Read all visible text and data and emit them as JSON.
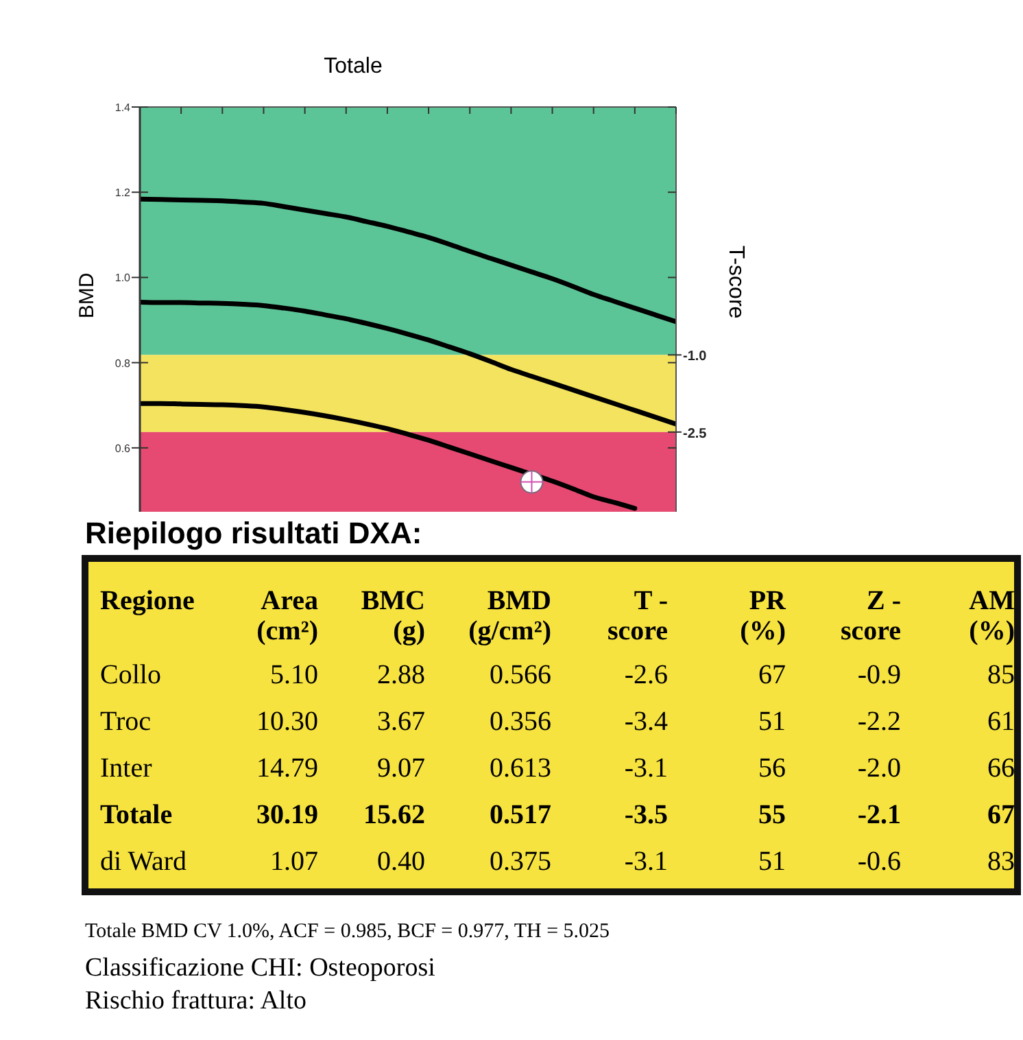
{
  "chart_data": [
    {
      "type": "line",
      "title": "Totale",
      "ylabel": "BMD",
      "y2label": "T-score",
      "categories": [
        null,
        null,
        null,
        null,
        null,
        null,
        null,
        null,
        null,
        null,
        null,
        null,
        null,
        null,
        null,
        null,
        null,
        null,
        null,
        null,
        null,
        null,
        null,
        null,
        null,
        null,
        null
      ],
      "series": [
        {
          "type": "line",
          "color": "#000000",
          "values": [
            1.184,
            1.183,
            1.182,
            1.181,
            1.18,
            1.177,
            1.174,
            1.166,
            1.158,
            1.15,
            1.142,
            1.131,
            1.12,
            1.107,
            1.094,
            1.078,
            1.061,
            1.045,
            1.029,
            1.013,
            0.997,
            0.979,
            0.96,
            0.944,
            0.928,
            0.912,
            0.896
          ]
        },
        {
          "type": "line",
          "color": "#000000",
          "values": [
            0.942,
            0.941,
            0.941,
            0.94,
            0.939,
            0.937,
            0.934,
            0.928,
            0.921,
            0.912,
            0.903,
            0.892,
            0.88,
            0.867,
            0.853,
            0.837,
            0.821,
            0.803,
            0.784,
            0.768,
            0.752,
            0.736,
            0.72,
            0.704,
            0.688,
            0.672,
            0.656
          ]
        },
        {
          "type": "line",
          "color": "#000000",
          "values": [
            0.704,
            0.704,
            0.703,
            0.702,
            0.701,
            0.699,
            0.696,
            0.69,
            0.683,
            0.675,
            0.666,
            0.656,
            0.645,
            0.632,
            0.618,
            0.602,
            0.586,
            0.57,
            0.554,
            0.538,
            0.522,
            0.504,
            0.485,
            0.472,
            0.458,
            null,
            null
          ]
        },
        {
          "type": "scatter",
          "color": "#ffffff",
          "marker": "circle",
          "values": [
            null,
            null,
            null,
            null,
            null,
            null,
            null,
            null,
            null,
            null,
            null,
            null,
            null,
            null,
            null,
            null,
            null,
            null,
            null,
            0.52,
            null,
            null,
            null,
            null,
            null,
            null,
            null
          ]
        }
      ],
      "ylim": [
        0.45,
        1.4
      ],
      "yticks": [
        {
          "value": 0.6,
          "label": "0.6"
        },
        {
          "value": 0.8,
          "label": "0.8"
        },
        {
          "value": 1,
          "label": "1.0"
        },
        {
          "value": 1.2,
          "label": "1.2"
        },
        {
          "value": 1.4,
          "label": "1.4"
        }
      ],
      "y2lim": [
        -4.05,
        3.82
      ],
      "y2ticks": [
        {
          "value": -1,
          "label": "-1.0"
        },
        {
          "value": -2.5,
          "label": "-2.5"
        }
      ],
      "bands": [
        {
          "axis": "y2",
          "from": -1,
          "to": 3.82,
          "color": "#5cc597"
        },
        {
          "axis": "y2",
          "from": -2.5,
          "to": -1,
          "color": "#f4e35e"
        },
        {
          "axis": "y2",
          "from": -4.05,
          "to": -2.5,
          "color": "#e64a72"
        }
      ],
      "tick_labels": "y",
      "grid": false
    },
    {
      "type": "other",
      "title": "Riepilogo risultati DXA:",
      "categories": [
        "Regione",
        "Area (cm²)",
        "BMC (g)",
        "BMD (g/cm²)",
        "T - score",
        "PR (%)",
        "Z - score",
        "AM (%)"
      ],
      "cell_labels": [
        [
          "Collo",
          "5.10",
          "2.88",
          "0.566",
          "-2.6",
          "67",
          "-0.9",
          "85"
        ],
        [
          "Troc",
          "10.30",
          "3.67",
          "0.356",
          "-3.4",
          "51",
          "-2.2",
          "61"
        ],
        [
          "Inter",
          "14.79",
          "9.07",
          "0.613",
          "-3.1",
          "56",
          "-2.0",
          "66"
        ],
        [
          "Totale",
          "30.19",
          "15.62",
          "0.517",
          "-3.5",
          "55",
          "-2.1",
          "67"
        ],
        [
          "di Ward",
          "1.07",
          "0.40",
          "0.375",
          "-3.1",
          "51",
          "-0.6",
          "83"
        ]
      ],
      "annotations": [
        "Totale BMD CV 1.0%, ACF = 0.985, BCF = 0.977, TH = 5.025",
        "Classificazione CHI: Osteoporosi",
        "Rischio frattura: Alto"
      ]
    }
  ]
}
